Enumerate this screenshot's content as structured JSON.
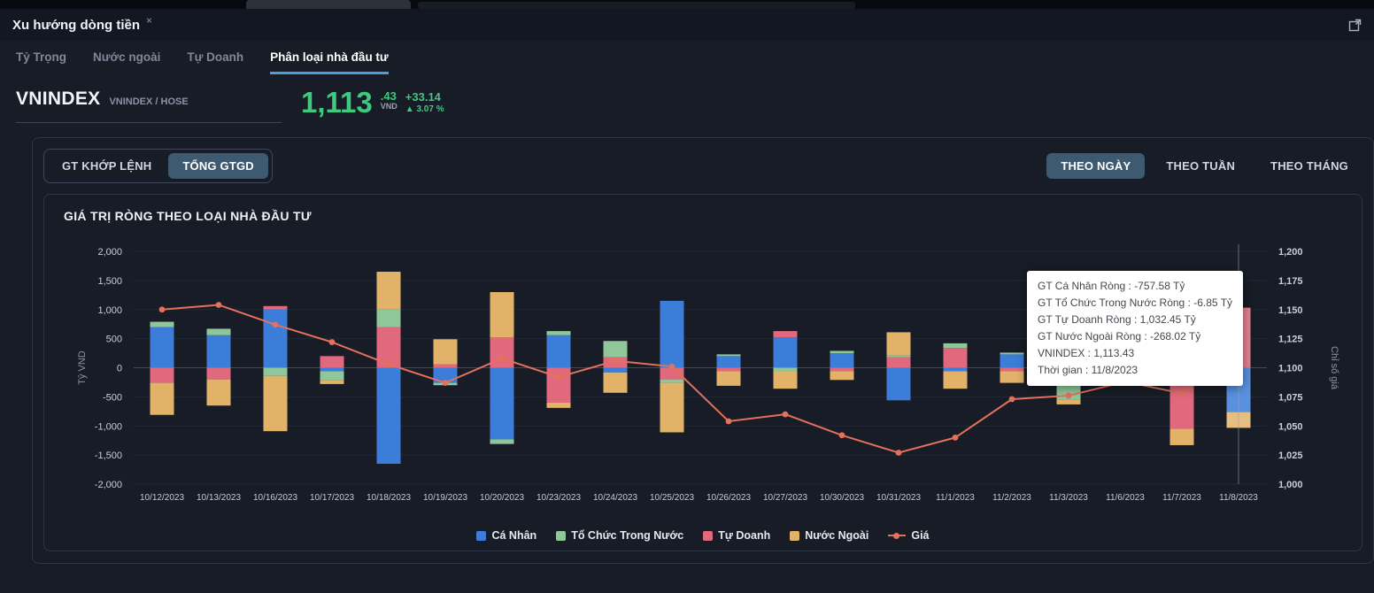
{
  "chrome": {
    "tab_title": "Xu hướng dòng tiền",
    "close_label": "×"
  },
  "subnav": {
    "items": [
      {
        "label": "Tỷ Trọng",
        "active": false
      },
      {
        "label": "Nước ngoài",
        "active": false
      },
      {
        "label": "Tự Doanh",
        "active": false
      },
      {
        "label": "Phân loại nhà đầu tư",
        "active": true
      }
    ]
  },
  "index_header": {
    "symbol": "VNINDEX",
    "subtitle": "VNINDEX / HOSE",
    "price_main": "1,113",
    "price_decimal": ".43",
    "currency": "VND",
    "change": "+33.14",
    "change_icon": "▲",
    "change_pct": "3.07 %"
  },
  "controls": {
    "left": [
      {
        "label": "GT KHỚP LỆNH",
        "active": false
      },
      {
        "label": "TỔNG GTGD",
        "active": true
      }
    ],
    "right": [
      {
        "label": "THEO NGÀY",
        "active": true
      },
      {
        "label": "THEO TUẦN",
        "active": false
      },
      {
        "label": "THEO THÁNG",
        "active": false
      }
    ]
  },
  "chart_card": {
    "title": "GIÁ TRỊ RÒNG THEO LOẠI NHÀ ĐẦU TƯ"
  },
  "chart_data": {
    "type": "bar",
    "stacked": true,
    "title": "GIÁ TRỊ RÒNG THEO LOẠI NHÀ ĐẦU TƯ",
    "categories": [
      "10/12/2023",
      "10/13/2023",
      "10/16/2023",
      "10/17/2023",
      "10/18/2023",
      "10/19/2023",
      "10/20/2023",
      "10/23/2023",
      "10/24/2023",
      "10/25/2023",
      "10/26/2023",
      "10/27/2023",
      "10/30/2023",
      "10/31/2023",
      "11/1/2023",
      "11/2/2023",
      "11/3/2023",
      "11/6/2023",
      "11/7/2023",
      "11/8/2023"
    ],
    "series": [
      {
        "name": "Cá Nhân",
        "color": "#3b7dd8",
        "values": [
          700,
          560,
          1000,
          -60,
          -1650,
          -260,
          -1230,
          560,
          -80,
          1150,
          200,
          520,
          250,
          -560,
          -60,
          230,
          120,
          60,
          280,
          -757.58
        ]
      },
      {
        "name": "Tổ Chức Trong Nước",
        "color": "#8fc79b",
        "values": [
          90,
          110,
          -140,
          -150,
          300,
          -40,
          -80,
          70,
          280,
          -60,
          30,
          -60,
          40,
          30,
          80,
          30,
          -550,
          -140,
          90,
          -6.85
        ]
      },
      {
        "name": "Tự Doanh",
        "color": "#e0697e",
        "values": [
          -260,
          -200,
          60,
          200,
          700,
          60,
          520,
          -600,
          180,
          -200,
          -60,
          110,
          -60,
          180,
          340,
          -60,
          60,
          340,
          -1050,
          1032.45
        ]
      },
      {
        "name": "Nước Ngoài",
        "color": "#e2b269",
        "values": [
          -550,
          -450,
          -950,
          -70,
          650,
          430,
          780,
          -90,
          -350,
          -850,
          -250,
          -300,
          -150,
          400,
          -300,
          -200,
          -80,
          -70,
          -280,
          -268.02
        ]
      }
    ],
    "stack_order": [
      0,
      2,
      1,
      3
    ],
    "line_series": {
      "name": "Giá",
      "color": "#e5705c",
      "axis": "right",
      "values": [
        1150,
        1154,
        1137,
        1122,
        1103,
        1087,
        1108,
        1092,
        1106,
        1101,
        1054,
        1060,
        1042,
        1027,
        1040,
        1073,
        1076,
        1088,
        1078,
        1113.43
      ]
    },
    "ylabel_left": "Tỷ VND",
    "ylabel_right": "Chỉ số giá",
    "yticks_left": [
      "2,000",
      "1,500",
      "1,000",
      "500",
      "0",
      "-500",
      "-1,000",
      "-1,500",
      "-2,000"
    ],
    "yticks_right": [
      "1,200",
      "1,175",
      "1,150",
      "1,125",
      "1,100",
      "1,075",
      "1,050",
      "1,025",
      "1,000"
    ],
    "ylim_left": [
      -2000,
      2000
    ],
    "ylim_right": [
      1000,
      1200
    ],
    "grid": true,
    "legend_position": "bottom",
    "highlight_index": 19
  },
  "tooltip": {
    "lines": [
      "GT Cá Nhân Ròng : -757.58 Tỷ",
      "GT Tổ Chức Trong Nước Ròng : -6.85 Tỷ",
      "GT Tự Doanh Ròng : 1,032.45 Tỷ",
      "GT Nước Ngoài Ròng : -268.02 Tỷ",
      "VNINDEX : 1,113.43",
      "Thời gian : 11/8/2023"
    ]
  }
}
